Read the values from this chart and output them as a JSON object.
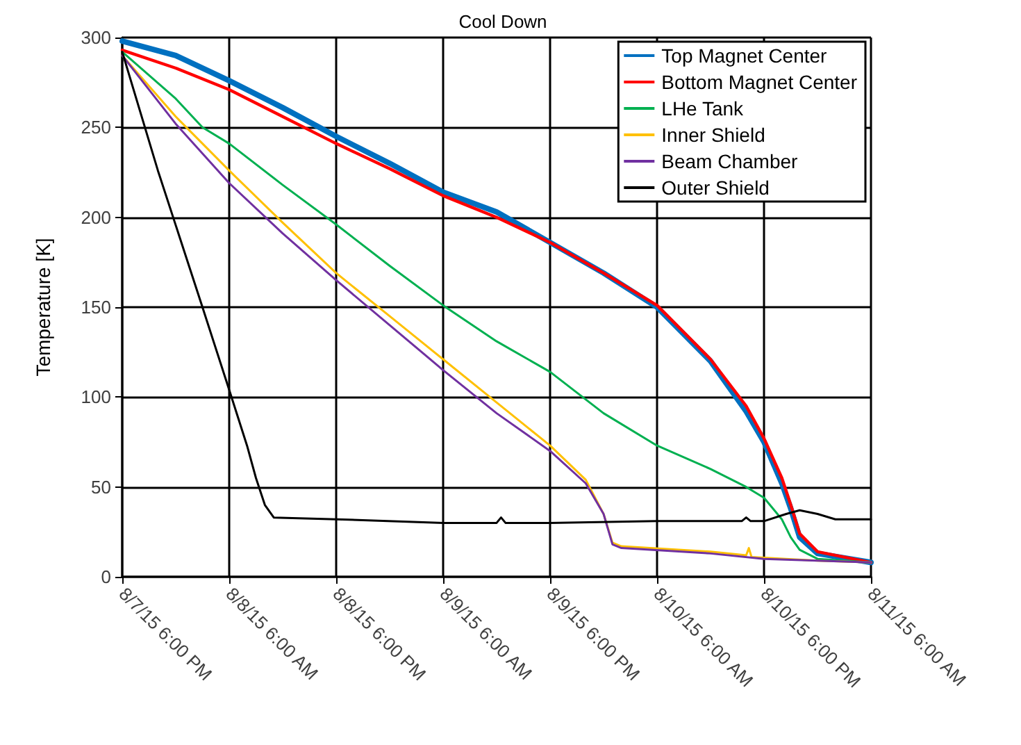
{
  "chart_data": {
    "type": "line",
    "title": "Cool Down",
    "ylabel": "Temperature [K]",
    "xlim": [
      "--08-07T18:00",
      "--08-11T06:00"
    ],
    "xticks": [
      {
        "value": "--08-07T18:00",
        "label": "8/7/15 6:00 PM"
      },
      {
        "value": "--08-08T06:00",
        "label": "8/8/15 6:00 AM"
      },
      {
        "value": "--08-08T18:00",
        "label": "8/8/15 6:00 PM"
      },
      {
        "value": "--08-09T06:00",
        "label": "8/9/15 6:00 AM"
      },
      {
        "value": "--08-09T18:00",
        "label": "8/9/15 6:00 PM"
      },
      {
        "value": "--08-10T06:00",
        "label": "8/10/15 6:00 AM"
      },
      {
        "value": "--08-10T18:00",
        "label": "8/10/15 6:00 PM"
      },
      {
        "value": "--08-11T06:00",
        "label": "8/11/15 6:00 AM"
      }
    ],
    "ylim": [
      0,
      300
    ],
    "yticks": [
      0,
      50,
      100,
      150,
      200,
      250,
      300
    ],
    "grid": true,
    "legend": "top right",
    "marker": "none",
    "line_style": "solid",
    "series": [
      {
        "name": "Top Magnet Center",
        "color": "#0070c0",
        "x": [
          "--08-07T18:00",
          "--08-08T00:00",
          "--08-08T06:00",
          "--08-08T12:00",
          "--08-08T18:00",
          "--08-09T00:00",
          "--08-09T06:00",
          "--08-09T12:00",
          "--08-09T18:00",
          "--08-10T00:00",
          "--08-10T06:00",
          "--08-10T12:00",
          "--08-10T16:00",
          "--08-10T18:00",
          "--08-10T20:00",
          "--08-10T21:00",
          "--08-10T22:00",
          "--08-11T00:00",
          "--08-11T06:00"
        ],
        "values": [
          298,
          290,
          276,
          261,
          245,
          230,
          214,
          203,
          186,
          169,
          150,
          120,
          92,
          75,
          52,
          38,
          22,
          13,
          8
        ]
      },
      {
        "name": "Bottom Magnet Center",
        "color": "#ff0000",
        "x": [
          "--08-07T18:00",
          "--08-08T00:00",
          "--08-08T06:00",
          "--08-08T12:00",
          "--08-08T18:00",
          "--08-09T00:00",
          "--08-09T06:00",
          "--08-09T12:00",
          "--08-09T18:00",
          "--08-10T00:00",
          "--08-10T06:00",
          "--08-10T12:00",
          "--08-10T16:00",
          "--08-10T18:00",
          "--08-10T20:00",
          "--08-10T21:00",
          "--08-10T22:00",
          "--08-11T00:00",
          "--08-11T06:00"
        ],
        "values": [
          293,
          283,
          271,
          256,
          241,
          227,
          212,
          200,
          186,
          169,
          151,
          121,
          95,
          77,
          55,
          40,
          24,
          14,
          8
        ]
      },
      {
        "name": "LHe Tank",
        "color": "#00b050",
        "x": [
          "--08-07T18:00",
          "--08-08T00:00",
          "--08-08T03:00",
          "--08-08T06:00",
          "--08-08T12:00",
          "--08-08T18:00",
          "--08-09T00:00",
          "--08-09T06:00",
          "--08-09T12:00",
          "--08-09T18:00",
          "--08-10T00:00",
          "--08-10T06:00",
          "--08-10T12:00",
          "--08-10T16:00",
          "--08-10T18:00",
          "--08-10T20:00",
          "--08-10T21:00",
          "--08-10T22:00",
          "--08-11T00:00",
          "--08-11T06:00"
        ],
        "values": [
          292,
          266,
          250,
          241,
          218,
          196,
          173,
          151,
          131,
          114,
          91,
          73,
          60,
          50,
          44,
          32,
          22,
          15,
          10,
          8
        ]
      },
      {
        "name": "Inner Shield",
        "color": "#ffc000",
        "x": [
          "--08-07T18:00",
          "--08-08T00:00",
          "--08-08T06:00",
          "--08-08T12:00",
          "--08-08T18:00",
          "--08-09T00:00",
          "--08-09T06:00",
          "--08-09T12:00",
          "--08-09T18:00",
          "--08-09T22:00",
          "--08-10T00:00",
          "--08-10T01:00",
          "--08-10T02:00",
          "--08-10T12:00",
          "--08-10T16:00",
          "--08-10T16:18",
          "--08-10T16:36",
          "--08-11T00:00",
          "--08-11T06:00"
        ],
        "values": [
          290,
          256,
          226,
          197,
          169,
          145,
          121,
          97,
          73,
          54,
          35,
          19,
          17,
          14,
          12,
          16,
          11,
          9,
          8
        ]
      },
      {
        "name": "Beam Chamber",
        "color": "#7030a0",
        "x": [
          "--08-07T18:00",
          "--08-08T00:00",
          "--08-08T06:00",
          "--08-08T12:00",
          "--08-08T18:00",
          "--08-09T00:00",
          "--08-09T06:00",
          "--08-09T12:00",
          "--08-09T18:00",
          "--08-09T22:00",
          "--08-10T00:00",
          "--08-10T01:00",
          "--08-10T02:00",
          "--08-10T12:00",
          "--08-10T18:00",
          "--08-11T00:00",
          "--08-11T06:00"
        ],
        "values": [
          290,
          252,
          219,
          191,
          165,
          140,
          115,
          91,
          70,
          52,
          35,
          18,
          16,
          13,
          10,
          9,
          8
        ]
      },
      {
        "name": "Outer Shield",
        "color": "#000000",
        "x": [
          "--08-07T18:00",
          "--08-07T22:00",
          "--08-08T03:00",
          "--08-08T06:00",
          "--08-08T08:00",
          "--08-08T09:00",
          "--08-08T10:00",
          "--08-08T11:00",
          "--08-08T18:00",
          "--08-09T06:00",
          "--08-09T12:00",
          "--08-09T12:30",
          "--08-09T13:00",
          "--08-09T18:00",
          "--08-10T06:00",
          "--08-10T15:30",
          "--08-10T16:00",
          "--08-10T16:30",
          "--08-10T18:00",
          "--08-10T20:30",
          "--08-10T22:00",
          "--08-11T00:00",
          "--08-11T02:00",
          "--08-11T06:00"
        ],
        "values": [
          292,
          226,
          150,
          104,
          73,
          55,
          40,
          33,
          32,
          30,
          30,
          33,
          30,
          30,
          31,
          31,
          33,
          31,
          31,
          35,
          37,
          35,
          32,
          32
        ]
      }
    ]
  }
}
